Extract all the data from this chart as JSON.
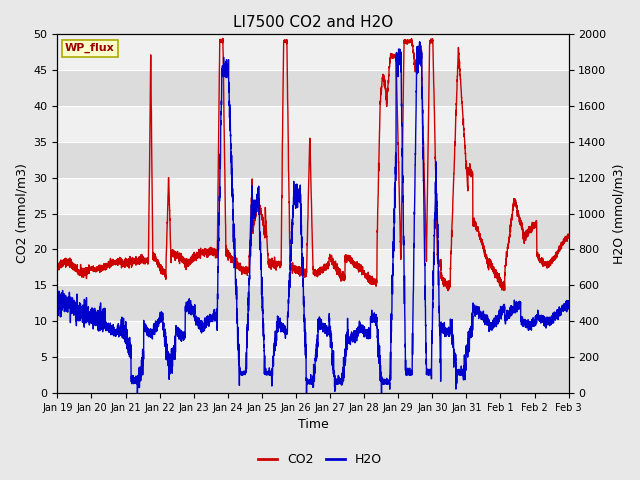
{
  "title": "LI7500 CO2 and H2O",
  "xlabel": "Time",
  "ylabel_left": "CO2 (mmol/m3)",
  "ylabel_right": "H2O (mmol/m3)",
  "ylim_left": [
    0,
    50
  ],
  "ylim_right": [
    0,
    2000
  ],
  "yticks_left": [
    0,
    5,
    10,
    15,
    20,
    25,
    30,
    35,
    40,
    45,
    50
  ],
  "yticks_right": [
    0,
    200,
    400,
    600,
    800,
    1000,
    1200,
    1400,
    1600,
    1800,
    2000
  ],
  "xtick_labels": [
    "Jan 19",
    "Jan 20",
    "Jan 21",
    "Jan 22",
    "Jan 23",
    "Jan 24",
    "Jan 25",
    "Jan 26",
    "Jan 27",
    "Jan 28",
    "Jan 29",
    "Jan 30",
    "Jan 31",
    "Feb 1",
    "Feb 2",
    "Feb 3"
  ],
  "co2_color": "#cc0000",
  "h2o_color": "#0000cc",
  "fig_bg_color": "#e8e8e8",
  "plot_bg_light": "#f0f0f0",
  "plot_bg_dark": "#dcdcdc",
  "watermark_text": "WP_flux",
  "watermark_bg": "#ffffcc",
  "watermark_border": "#aaaa00",
  "watermark_text_color": "#990000",
  "legend_co2_label": "CO2",
  "legend_h2o_label": "H2O",
  "line_width": 1.0,
  "n_days": 16,
  "n_ticks": 16
}
